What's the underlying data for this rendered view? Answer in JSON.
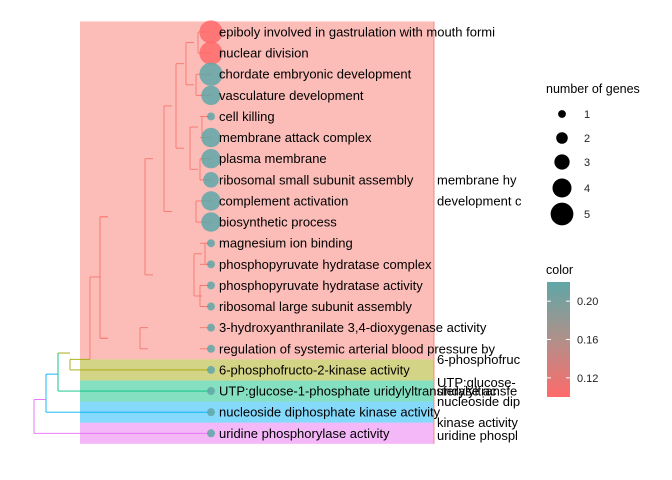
{
  "chart_data": {
    "type": "treeplot",
    "terms": [
      {
        "label": "epiboly involved in gastrulation with mouth formi",
        "count": 5,
        "color": 0.1
      },
      {
        "label": "nuclear division",
        "count": 5,
        "color": 0.1
      },
      {
        "label": "chordate embryonic development",
        "count": 5,
        "color": 0.22
      },
      {
        "label": "vasculature development",
        "count": 4,
        "color": 0.22
      },
      {
        "label": "cell killing",
        "count": 1,
        "color": 0.22
      },
      {
        "label": "membrane attack complex",
        "count": 4,
        "color": 0.22
      },
      {
        "label": "plasma membrane",
        "count": 4,
        "color": 0.22
      },
      {
        "label": "ribosomal small subunit assembly",
        "count": 3,
        "color": 0.22
      },
      {
        "label": "complement activation",
        "count": 4,
        "color": 0.22
      },
      {
        "label": "biosynthetic process",
        "count": 4,
        "color": 0.22
      },
      {
        "label": "magnesium ion binding",
        "count": 1,
        "color": 0.22
      },
      {
        "label": "phosphopyruvate hydratase complex",
        "count": 1,
        "color": 0.22
      },
      {
        "label": "phosphopyruvate hydratase activity",
        "count": 1,
        "color": 0.22
      },
      {
        "label": "ribosomal large subunit assembly",
        "count": 1,
        "color": 0.22
      },
      {
        "label": "3-hydroxyanthranilate 3,4-dioxygenase activity",
        "count": 1,
        "color": 0.22
      },
      {
        "label": "regulation of systemic arterial blood pressure by",
        "count": 1,
        "color": 0.22
      },
      {
        "label": "6-phosphofructo-2-kinase activity",
        "count": 1,
        "color": 0.22
      },
      {
        "label": "UTP:glucose-1-phosphate uridylyltransferase ac",
        "count": 1,
        "color": 0.22
      },
      {
        "label": "nucleoside diphosphate kinase activity",
        "count": 1,
        "color": 0.22
      },
      {
        "label": "uridine phosphorylase activity",
        "count": 1,
        "color": 0.22
      }
    ],
    "clusters": [
      {
        "color": "#F8766D",
        "rows": [
          1,
          16
        ]
      },
      {
        "color": "#A3A500",
        "rows": [
          17,
          17
        ]
      },
      {
        "color": "#00BF7D",
        "rows": [
          18,
          18
        ]
      },
      {
        "color": "#00B0F6",
        "rows": [
          19,
          19
        ]
      },
      {
        "color": "#E76BF3",
        "rows": [
          20,
          20
        ]
      }
    ],
    "cluster_labels": [
      {
        "text": "membrane hy",
        "row": 8
      },
      {
        "text": "development c",
        "row": 9
      },
      {
        "text": "6-phosphofruc",
        "row": 16.5
      },
      {
        "text": "UTP:glucose-",
        "row": 17.6
      },
      {
        "text": "uridylyltransfe",
        "row": 18.0
      },
      {
        "text": "nucleoside dip",
        "row": 18.5
      },
      {
        "text": "kinase activity",
        "row": 19.5
      },
      {
        "text": "uridine phospl",
        "row": 20.1
      }
    ],
    "legend_size": {
      "title": "number of genes",
      "values": [
        1,
        2,
        3,
        4,
        5
      ],
      "labels": [
        "1",
        "2",
        "3",
        "4",
        "5"
      ]
    },
    "legend_color": {
      "title": "color",
      "ticks": [
        0.12,
        0.16,
        0.2
      ],
      "tick_labels": [
        "0.12",
        "0.16",
        "0.20"
      ],
      "range": [
        0.1,
        0.22
      ],
      "low_color": "#FF6A6A",
      "high_color": "#5FA7A7"
    }
  }
}
